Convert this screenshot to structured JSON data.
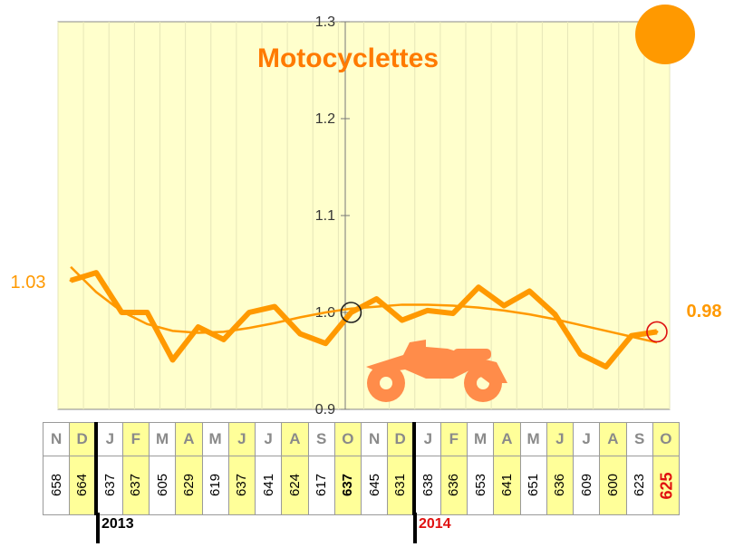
{
  "chart_data": {
    "type": "line",
    "title": "Motocyclettes",
    "y_ticks": [
      "0.9",
      "1.0",
      "1.1",
      "1.2",
      "1.3"
    ],
    "ylim": [
      0.9,
      1.3
    ],
    "grid": "vertical",
    "x": [
      "N",
      "D",
      "J",
      "F",
      "M",
      "A",
      "M",
      "J",
      "J",
      "A",
      "S",
      "O",
      "N",
      "D",
      "J",
      "F",
      "M",
      "A",
      "M",
      "J",
      "J",
      "A",
      "S",
      "O"
    ],
    "series": [
      {
        "values": [
          1.033,
          1.041,
          1.0,
          1.0,
          0.951,
          0.985,
          0.972,
          1.0,
          1.006,
          0.978,
          0.968,
          1.0,
          1.014,
          0.992,
          1.002,
          0.999,
          1.026,
          1.007,
          1.022,
          0.998,
          0.957,
          0.944,
          0.976,
          0.98
        ]
      },
      {
        "trend": true,
        "values": [
          1.047,
          1.021,
          1.001,
          0.988,
          0.981,
          0.979,
          0.98,
          0.984,
          0.989,
          0.995,
          1.0,
          1.004,
          1.006,
          1.008,
          1.008,
          1.007,
          1.005,
          1.002,
          0.998,
          0.993,
          0.987,
          0.981,
          0.975,
          0.969
        ]
      }
    ],
    "start_label": "1.03",
    "end_label": "0.98",
    "colors": {
      "line": "#ff9900",
      "trend": "#ff9900",
      "marker_mid": "#222222",
      "marker_end": "#dd1111",
      "plot_bg": "#ffffcc",
      "highlight": "#ffff99"
    }
  },
  "table": {
    "months": [
      "N",
      "D",
      "J",
      "F",
      "M",
      "A",
      "M",
      "J",
      "J",
      "A",
      "S",
      "O",
      "N",
      "D",
      "J",
      "F",
      "M",
      "A",
      "M",
      "J",
      "J",
      "A",
      "S",
      "O"
    ],
    "values": [
      "658",
      "664",
      "637",
      "637",
      "605",
      "629",
      "619",
      "637",
      "641",
      "624",
      "617",
      "637",
      "645",
      "631",
      "638",
      "636",
      "653",
      "641",
      "651",
      "636",
      "609",
      "600",
      "623",
      "625"
    ],
    "years": [
      "2013",
      "2014"
    ]
  },
  "icons": [
    "motorcycle-icon",
    "orange-dot-icon"
  ]
}
